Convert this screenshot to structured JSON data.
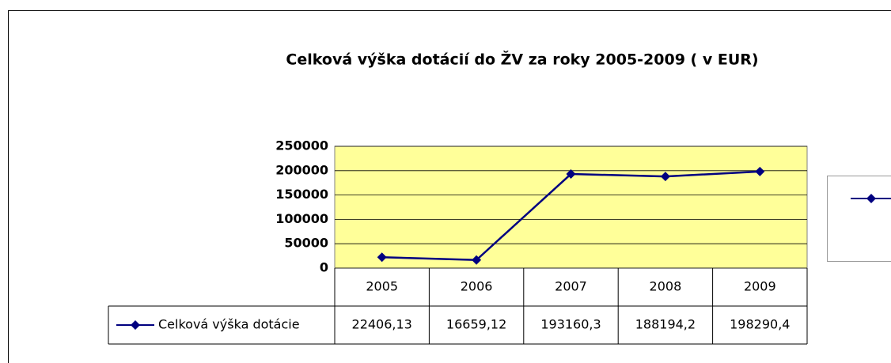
{
  "chart_data": {
    "type": "line",
    "title": "Celková výška dotácií do ŽV za roky 2005-2009 ( v EUR)",
    "categories": [
      "2005",
      "2006",
      "2007",
      "2008",
      "2009"
    ],
    "series": [
      {
        "name": "Celková výška dotácie",
        "color": "#000080",
        "values": [
          22406.13,
          16659.12,
          193160.3,
          188194.2,
          198290.4
        ],
        "value_labels": [
          "22406,13",
          "16659,12",
          "193160,3",
          "188194,2",
          "198290,4"
        ]
      }
    ],
    "ylim": [
      0,
      250000
    ],
    "yticks": [
      0,
      50000,
      100000,
      150000,
      200000,
      250000
    ],
    "grid": true,
    "plot_background": "#ffff99"
  }
}
